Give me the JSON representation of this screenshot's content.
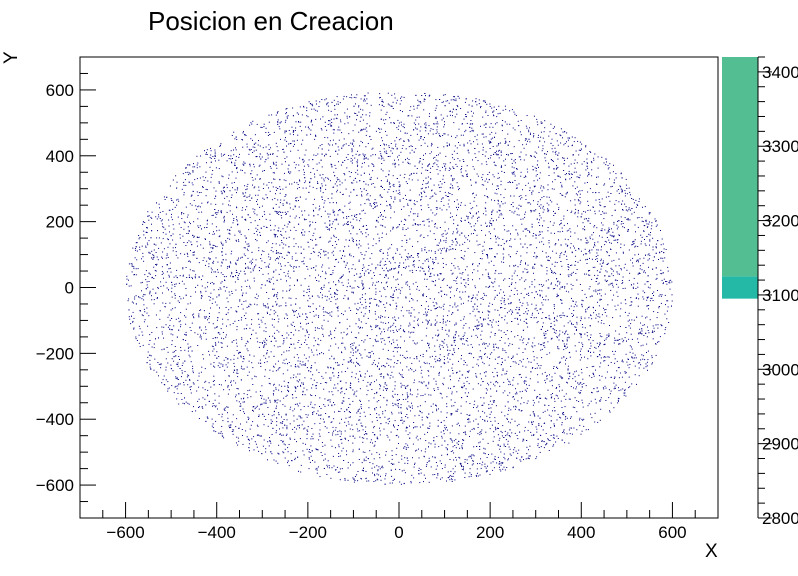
{
  "chart_data": {
    "type": "scatter",
    "title": "Posicion en Creacion",
    "xlabel": "X",
    "ylabel": "Y",
    "xlim": [
      -700,
      700
    ],
    "ylim": [
      -700,
      700
    ],
    "x_ticks": [
      -600,
      -400,
      -200,
      0,
      200,
      400,
      600
    ],
    "y_ticks": [
      -600,
      -400,
      -200,
      0,
      200,
      400,
      600
    ],
    "x_tick_labels": [
      "−600",
      "−400",
      "−200",
      "0",
      "200",
      "400",
      "600"
    ],
    "y_tick_labels": [
      "−600",
      "−400",
      "−200",
      "0",
      "200",
      "400",
      "600"
    ],
    "distribution": {
      "shape": "uniform disk",
      "center": [
        0,
        0
      ],
      "radius": 600,
      "approx_points": 9000
    },
    "marker_color": "#000080",
    "grid": false,
    "color_scale": {
      "range": [
        2800,
        3420
      ],
      "ticks": [
        2800,
        2900,
        3000,
        3100,
        3200,
        3300,
        3400
      ],
      "tick_labels": [
        "2800",
        "2900",
        "3000",
        "3100",
        "3200",
        "3300",
        "3400"
      ],
      "filled_bands": [
        {
          "from": 3095,
          "to": 3125,
          "color": "#24b9a7"
        },
        {
          "from": 3125,
          "to": 3420,
          "color": "#52be91"
        }
      ]
    }
  }
}
